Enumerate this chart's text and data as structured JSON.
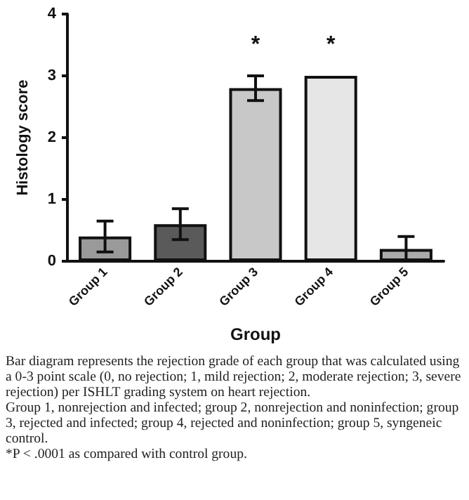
{
  "chart_data": {
    "type": "bar",
    "xlabel": "Group",
    "ylabel": "Histology score",
    "categories": [
      "Group 1",
      "Group 2",
      "Group 3",
      "Group 4",
      "Group 5"
    ],
    "values": [
      0.4,
      0.6,
      2.8,
      3.0,
      0.2
    ],
    "errors": [
      0.25,
      0.25,
      0.2,
      null,
      0.2
    ],
    "colors": [
      "#9a9a9a",
      "#5a5a5a",
      "#c8c8c8",
      "#e6e6e6",
      "#ababab"
    ],
    "ylim": [
      0,
      4
    ],
    "yticks": [
      0,
      1,
      2,
      3,
      4
    ],
    "grid": false,
    "annotations": [
      {
        "text": "*",
        "x": "Group 3",
        "y": 2.8
      },
      {
        "text": "*",
        "x": "Group 4",
        "y": 3.0
      },
      "Bar diagram represents the rejection grade of each group that was calculated using a 0-3 point scale (0, no rejection; 1, mild rejection; 2, moderate rejection; 3, severe rejection) per ISHLT grading system on heart rejection.",
      "Group 1, nonrejection and infected; group 2, nonrejection and noninfection; group 3, rejected and infected; group 4, rejected and noninfection; group 5, syngeneic control.",
      "*P < .0001 as compared with control group."
    ]
  }
}
